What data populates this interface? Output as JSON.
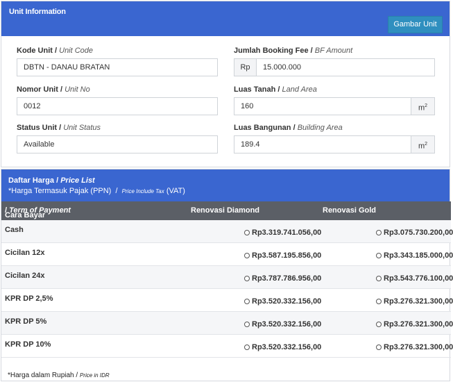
{
  "unit_panel": {
    "title": "Unit Information",
    "gambar_button": "Gambar Unit",
    "kode_unit": {
      "label": "Kode Unit",
      "label_en": "Unit Code",
      "value": "DBTN - DANAU BRATAN"
    },
    "nomor_unit": {
      "label": "Nomor Unit",
      "label_en": "Unit No",
      "value": "0012"
    },
    "status_unit": {
      "label": "Status Unit",
      "label_en": "Unit Status",
      "value": "Available"
    },
    "booking_fee": {
      "label": "Jumlah Booking Fee",
      "label_en": "BF Amount",
      "prefix": "Rp",
      "value": "15.000.000"
    },
    "luas_tanah": {
      "label": "Luas Tanah",
      "label_en": "Land Area",
      "value": "160",
      "unit": "m",
      "unit_sup": "2"
    },
    "luas_bangunan": {
      "label": "Luas Bangunan",
      "label_en": "Building Area",
      "value": "189.4",
      "unit": "m",
      "unit_sup": "2"
    }
  },
  "price_panel": {
    "title": "Daftar Harga",
    "title_en": "Price List",
    "sub_main": "*Harga Termasuk Pajak (PPN)",
    "sub_sep": "/",
    "sub_small": "Price Include Tax",
    "sub_vat": "(VAT)",
    "col_term": "Cara Bayar",
    "col_term_en": "Term of Payment",
    "col_diamond": "Renovasi Diamond",
    "col_gold": "Renovasi Gold",
    "rows": [
      {
        "term": "Cash",
        "diamond": "Rp3.319.741.056,00",
        "gold": "Rp3.075.730.200,00"
      },
      {
        "term": "Cicilan 12x",
        "diamond": "Rp3.587.195.856,00",
        "gold": "Rp3.343.185.000,00"
      },
      {
        "term": "Cicilan 24x",
        "diamond": "Rp3.787.786.956,00",
        "gold": "Rp3.543.776.100,00"
      },
      {
        "term": "KPR DP 2,5%",
        "diamond": "Rp3.520.332.156,00",
        "gold": "Rp3.276.321.300,00"
      },
      {
        "term": "KPR DP 5%",
        "diamond": "Rp3.520.332.156,00",
        "gold": "Rp3.276.321.300,00"
      },
      {
        "term": "KPR DP 10%",
        "diamond": "Rp3.520.332.156,00",
        "gold": "Rp3.276.321.300,00"
      }
    ],
    "footnote": "*Harga dalam Rupiah /",
    "footnote_small": "Price in IDR"
  }
}
